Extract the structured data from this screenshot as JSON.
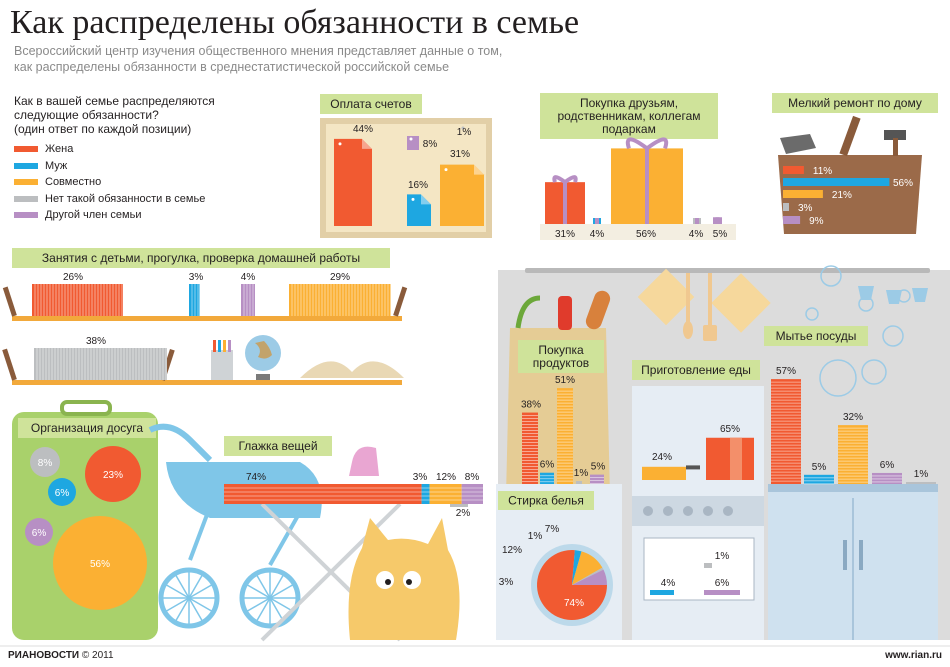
{
  "title": "Как распределены обязанности в семье",
  "subtitle_lines": [
    "Всероссийский центр изучения общественного мнения представляет данные о том,",
    "как распределены обязанности в среднестатистической российской семье"
  ],
  "question_lines": [
    "Как в вашей семье распределяются",
    "следующие обязанности?",
    "(один ответ по каждой позиции)"
  ],
  "colors": {
    "wife": "#f15a31",
    "husband": "#1ea7e1",
    "together": "#fbb033",
    "none": "#bcbec0",
    "other": "#b78fc4",
    "label_bg": "#cfe39a",
    "wall_panel": "#d9d9d9",
    "board": "#f2a93b"
  },
  "legend": [
    {
      "key": "wife",
      "label": "Жена",
      "color": "#f15a31"
    },
    {
      "key": "husband",
      "label": "Муж",
      "color": "#1ea7e1"
    },
    {
      "key": "together",
      "label": "Совместно",
      "color": "#fbb033"
    },
    {
      "key": "none",
      "label": "Нет такой обязанности в семье",
      "color": "#bcbec0"
    },
    {
      "key": "other",
      "label": "Другой член семьи",
      "color": "#b78fc4"
    }
  ],
  "footer": {
    "brand_ria": "РИА",
    "brand_novosti": "НОВОСТИ",
    "copyright": "© 2011",
    "url": "www.rian.ru"
  },
  "chart_data": [
    {
      "type": "bar",
      "id": "bills",
      "title": "Оплата счетов",
      "categories": [
        "Жена",
        "Муж",
        "Совместно",
        "Нет такой обязанности в семье",
        "Другой член семьи"
      ],
      "values": [
        44,
        16,
        31,
        1,
        8
      ],
      "labels": [
        "44%",
        "16%",
        "31%",
        "1%",
        "8%"
      ]
    },
    {
      "type": "bar",
      "id": "gifts",
      "title_lines": [
        "Покупка друзьям,",
        "родственникам, коллегам",
        "подаркам"
      ],
      "categories": [
        "Жена",
        "Муж",
        "Совместно",
        "Нет такой обязанности в семье",
        "Другой член семьи"
      ],
      "values": [
        31,
        4,
        56,
        4,
        5
      ],
      "labels": [
        "31%",
        "4%",
        "56%",
        "4%",
        "5%"
      ]
    },
    {
      "type": "bar",
      "id": "repair",
      "title": "Мелкий ремонт по дому",
      "categories": [
        "Жена",
        "Муж",
        "Совместно",
        "Нет такой обязанности в семье",
        "Другой член семьи"
      ],
      "values": [
        11,
        56,
        21,
        3,
        9
      ],
      "labels": [
        "11%",
        "56%",
        "21%",
        "3%",
        "9%"
      ]
    },
    {
      "type": "bar",
      "id": "children",
      "title": "Занятия с детьми, прогулка, проверка домашней работы",
      "categories": [
        "Жена",
        "Муж",
        "Другой член семьи",
        "Совместно",
        "Нет такой обязанности в семье"
      ],
      "values": [
        26,
        3,
        4,
        29,
        38
      ],
      "labels": [
        "26%",
        "3%",
        "4%",
        "29%",
        "38%"
      ]
    },
    {
      "type": "pie",
      "id": "leisure",
      "title": "Организация досуга",
      "categories": [
        "Нет такой обязанности в семье",
        "Жена",
        "Муж",
        "Другой член семьи",
        "Совместно"
      ],
      "values": [
        8,
        23,
        6,
        6,
        56
      ],
      "labels": [
        "8%",
        "23%",
        "6%",
        "6%",
        "56%"
      ]
    },
    {
      "type": "bar",
      "id": "ironing",
      "title": "Глажка вещей",
      "categories": [
        "Жена",
        "Муж",
        "Совместно",
        "Другой член семьи",
        "Нет такой обязанности в семье"
      ],
      "values": [
        74,
        3,
        12,
        8,
        2
      ],
      "labels": [
        "74%",
        "3%",
        "12%",
        "8%",
        "2%"
      ]
    },
    {
      "type": "bar",
      "id": "groceries",
      "title_lines": [
        "Покупка",
        "продуктов"
      ],
      "categories": [
        "Жена",
        "Муж",
        "Совместно",
        "Нет такой обязанности в семье",
        "Другой член семьи"
      ],
      "values": [
        38,
        6,
        51,
        1,
        5
      ],
      "labels": [
        "38%",
        "6%",
        "51%",
        "1%",
        "5%"
      ]
    },
    {
      "type": "pie",
      "id": "laundry",
      "title": "Стирка белья",
      "categories": [
        "Жена",
        "Муж",
        "Совместно",
        "Нет такой обязанности в семье",
        "Другой член семьи"
      ],
      "values": [
        74,
        3,
        12,
        1,
        7
      ],
      "labels": [
        "74%",
        "3%",
        "12%",
        "1%",
        "7%"
      ]
    },
    {
      "type": "bar",
      "id": "cooking",
      "title": "Приготовление еды",
      "categories": [
        "Совместно",
        "Жена",
        "Муж",
        "Другой член семьи",
        "Нет такой обязанности в семье"
      ],
      "values": [
        24,
        65,
        4,
        6,
        1
      ],
      "labels": [
        "24%",
        "65%",
        "4%",
        "6%",
        "1%"
      ]
    },
    {
      "type": "bar",
      "id": "dishes",
      "title": "Мытье посуды",
      "categories": [
        "Жена",
        "Муж",
        "Совместно",
        "Другой член семьи",
        "Нет такой обязанности в семье"
      ],
      "values": [
        57,
        5,
        32,
        6,
        1
      ],
      "labels": [
        "57%",
        "5%",
        "32%",
        "6%",
        "1%"
      ]
    }
  ]
}
